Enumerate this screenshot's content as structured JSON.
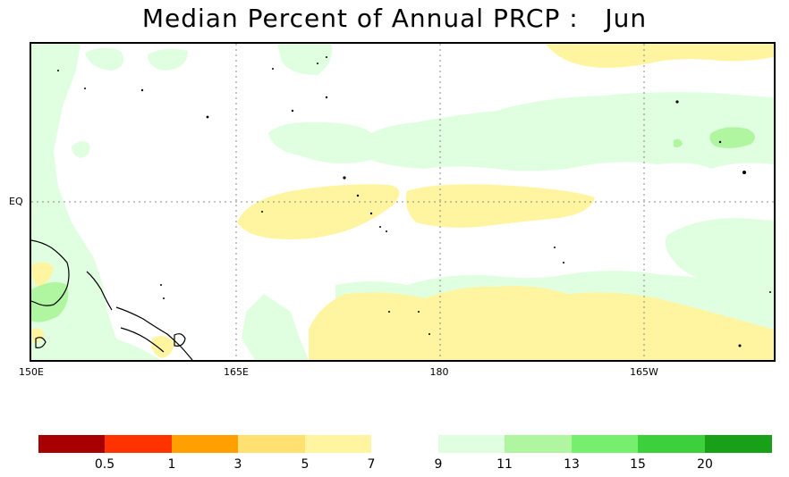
{
  "title": "Median Percent of Annual PRCP :   Jun",
  "axes": {
    "lat_labels": [
      "EQ"
    ],
    "lon_labels": [
      "150E",
      "165E",
      "180",
      "165W"
    ]
  },
  "colors": {
    "lt05": "#a80000",
    "c05_1": "#ff3300",
    "c1_3": "#ffa000",
    "c3_5": "#ffe070",
    "c5_7": "#fff5a0",
    "c7_9": "#ffffff",
    "c9_11": "#e0ffe0",
    "c11_13": "#b0f5a0",
    "c13_15": "#76ee6e",
    "c15_20": "#3cd03c",
    "gt20": "#18a018"
  },
  "legend": {
    "ticks": [
      "0.5",
      "1",
      "3",
      "5",
      "7",
      "9",
      "11",
      "13",
      "15",
      "20"
    ]
  }
}
